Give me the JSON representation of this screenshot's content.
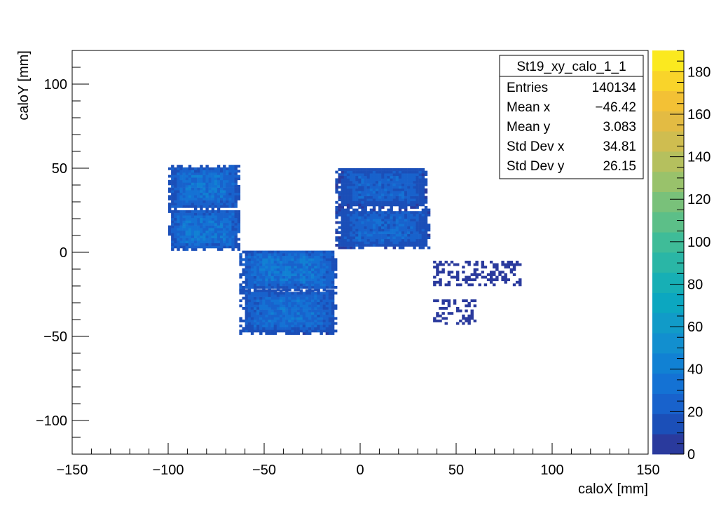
{
  "chart_data": {
    "type": "heatmap",
    "title": "",
    "xlabel": "caloX [mm]",
    "ylabel": "caloY [mm]",
    "xlim": [
      -150,
      150
    ],
    "ylim": [
      -120,
      120
    ],
    "xticks": [
      -150,
      -100,
      -50,
      0,
      50,
      100,
      150
    ],
    "yticks": [
      -100,
      -50,
      0,
      50,
      100
    ],
    "xtick_labels": [
      "−150",
      "−100",
      "−50",
      "0",
      "50",
      "100",
      "150"
    ],
    "ytick_labels": [
      "−100",
      "−50",
      "0",
      "50",
      "100"
    ],
    "grid": false,
    "zlim": [
      0,
      190
    ],
    "zticks": [
      0,
      20,
      40,
      60,
      80,
      100,
      120,
      140,
      160,
      180
    ],
    "ztick_labels": [
      "0",
      "20",
      "40",
      "60",
      "80",
      "100",
      "120",
      "140",
      "160",
      "180"
    ],
    "palette": [
      "#2a3a9d",
      "#1b4fb8",
      "#1862cc",
      "#1472d4",
      "#1181d3",
      "#128fcf",
      "#119bc8",
      "#0ca7c0",
      "#17afb5",
      "#2ab6a6",
      "#3fbc98",
      "#5cbf88",
      "#79c17a",
      "#99c26b",
      "#b5c05e",
      "#cfbd50",
      "#e3bb43",
      "#f3c135",
      "#f9d42a",
      "#fbe91f"
    ],
    "regions": [
      {
        "x": [
          -100,
          -63
        ],
        "y": [
          25,
          51
        ],
        "level": 28
      },
      {
        "x": [
          -100,
          -63
        ],
        "y": [
          1,
          25
        ],
        "level": 30
      },
      {
        "x": [
          -63,
          -13
        ],
        "y": [
          -23,
          1
        ],
        "level": 30
      },
      {
        "x": [
          -63,
          -13
        ],
        "y": [
          -49,
          -23
        ],
        "level": 26
      },
      {
        "x": [
          -13,
          35
        ],
        "y": [
          26,
          50
        ],
        "level": 20
      },
      {
        "x": [
          -13,
          36
        ],
        "y": [
          2,
          25
        ],
        "level": 22
      },
      {
        "x": [
          38,
          60
        ],
        "y": [
          -20,
          -5
        ],
        "level": 6,
        "sparse": true
      },
      {
        "x": [
          38,
          60
        ],
        "y": [
          -43,
          -28
        ],
        "level": 8,
        "sparse": true
      },
      {
        "x": [
          60,
          83
        ],
        "y": [
          -20,
          -5
        ],
        "level": 3,
        "sparse": true
      }
    ],
    "stats": {
      "name": "St19_xy_calo_1_1",
      "rows": [
        {
          "label": "Entries",
          "value": "140134"
        },
        {
          "label": "Mean x",
          "value": "−46.42"
        },
        {
          "label": "Mean y",
          "value": "3.083"
        },
        {
          "label": "Std Dev x",
          "value": "34.81"
        },
        {
          "label": "Std Dev y",
          "value": "26.15"
        }
      ]
    }
  }
}
